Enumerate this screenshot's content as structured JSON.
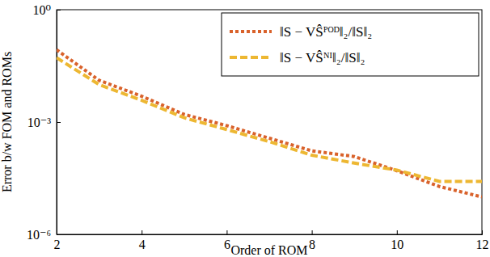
{
  "chart_data": {
    "type": "line",
    "x_label": "Order of ROM",
    "y_label": "Error b/w FOM and ROMs",
    "x": [
      2,
      3,
      4,
      5,
      6,
      7,
      8,
      9,
      10,
      11,
      12
    ],
    "series": [
      {
        "name": "‖S − VŜᴾᴼᴰ‖₂/‖S‖₂",
        "color": "#d9622b",
        "line_style": "dotted",
        "values": [
          0.085,
          0.013,
          0.0049,
          0.0016,
          0.0008,
          0.00037,
          0.00017,
          0.00012,
          5e-05,
          1.9e-05,
          1e-05
        ]
      },
      {
        "name": "‖S − VŜᴺᴵ‖₂/‖S‖₂",
        "color": "#edb732",
        "line_style": "dashed",
        "values": [
          0.052,
          0.01,
          0.0038,
          0.0013,
          0.00063,
          0.0003,
          0.00013,
          8e-05,
          5.2e-05,
          2.6e-05,
          2.6e-05
        ]
      }
    ],
    "xlim": [
      2,
      12
    ],
    "ylim": [
      1e-06,
      1
    ],
    "xticks": [
      2,
      4,
      6,
      8,
      10,
      12
    ],
    "yticks": [
      {
        "value": 1e-06,
        "label": "10⁻⁶"
      },
      {
        "value": 0.001,
        "label": "10⁻³"
      },
      {
        "value": 1,
        "label": "10⁰"
      }
    ],
    "log": "y",
    "grid": false,
    "legend": "top-right"
  }
}
